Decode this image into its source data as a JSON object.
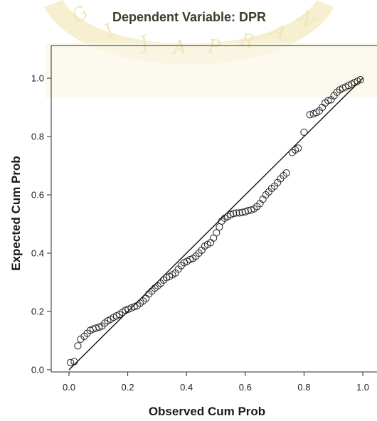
{
  "chart_data": {
    "type": "scatter",
    "title": "Dependent Variable: DPR",
    "xlabel": "Observed Cum Prob",
    "ylabel": "Expected Cum Prob",
    "xlim": [
      0.0,
      1.0
    ],
    "ylim": [
      0.0,
      1.0
    ],
    "x_ticks": [
      "0.0",
      "0.2",
      "0.4",
      "0.6",
      "0.8",
      "1.0"
    ],
    "y_ticks": [
      "0.0",
      "0.2",
      "0.4",
      "0.6",
      "0.8",
      "1.0"
    ],
    "grid": false,
    "reference_line": {
      "from": [
        0.0,
        0.0
      ],
      "to": [
        1.0,
        1.0
      ]
    },
    "points": [
      [
        0.005,
        0.025
      ],
      [
        0.018,
        0.028
      ],
      [
        0.03,
        0.082
      ],
      [
        0.04,
        0.105
      ],
      [
        0.052,
        0.115
      ],
      [
        0.062,
        0.125
      ],
      [
        0.072,
        0.135
      ],
      [
        0.082,
        0.14
      ],
      [
        0.092,
        0.143
      ],
      [
        0.102,
        0.146
      ],
      [
        0.112,
        0.15
      ],
      [
        0.122,
        0.16
      ],
      [
        0.132,
        0.168
      ],
      [
        0.142,
        0.173
      ],
      [
        0.152,
        0.18
      ],
      [
        0.162,
        0.185
      ],
      [
        0.172,
        0.19
      ],
      [
        0.182,
        0.197
      ],
      [
        0.192,
        0.204
      ],
      [
        0.202,
        0.208
      ],
      [
        0.212,
        0.212
      ],
      [
        0.222,
        0.216
      ],
      [
        0.232,
        0.22
      ],
      [
        0.242,
        0.228
      ],
      [
        0.252,
        0.236
      ],
      [
        0.262,
        0.245
      ],
      [
        0.272,
        0.26
      ],
      [
        0.282,
        0.27
      ],
      [
        0.292,
        0.28
      ],
      [
        0.302,
        0.288
      ],
      [
        0.312,
        0.297
      ],
      [
        0.322,
        0.308
      ],
      [
        0.332,
        0.316
      ],
      [
        0.342,
        0.32
      ],
      [
        0.352,
        0.326
      ],
      [
        0.362,
        0.332
      ],
      [
        0.372,
        0.345
      ],
      [
        0.382,
        0.357
      ],
      [
        0.392,
        0.367
      ],
      [
        0.402,
        0.372
      ],
      [
        0.412,
        0.378
      ],
      [
        0.422,
        0.382
      ],
      [
        0.432,
        0.39
      ],
      [
        0.442,
        0.4
      ],
      [
        0.452,
        0.41
      ],
      [
        0.462,
        0.424
      ],
      [
        0.472,
        0.43
      ],
      [
        0.482,
        0.436
      ],
      [
        0.492,
        0.452
      ],
      [
        0.502,
        0.47
      ],
      [
        0.512,
        0.49
      ],
      [
        0.52,
        0.51
      ],
      [
        0.53,
        0.52
      ],
      [
        0.54,
        0.526
      ],
      [
        0.55,
        0.532
      ],
      [
        0.56,
        0.536
      ],
      [
        0.57,
        0.538
      ],
      [
        0.58,
        0.538
      ],
      [
        0.59,
        0.54
      ],
      [
        0.6,
        0.542
      ],
      [
        0.61,
        0.546
      ],
      [
        0.62,
        0.548
      ],
      [
        0.63,
        0.552
      ],
      [
        0.64,
        0.56
      ],
      [
        0.65,
        0.57
      ],
      [
        0.66,
        0.585
      ],
      [
        0.67,
        0.6
      ],
      [
        0.68,
        0.61
      ],
      [
        0.69,
        0.622
      ],
      [
        0.7,
        0.63
      ],
      [
        0.71,
        0.642
      ],
      [
        0.72,
        0.655
      ],
      [
        0.73,
        0.666
      ],
      [
        0.74,
        0.675
      ],
      [
        0.76,
        0.745
      ],
      [
        0.77,
        0.754
      ],
      [
        0.78,
        0.76
      ],
      [
        0.8,
        0.815
      ],
      [
        0.82,
        0.875
      ],
      [
        0.832,
        0.878
      ],
      [
        0.842,
        0.882
      ],
      [
        0.852,
        0.888
      ],
      [
        0.862,
        0.9
      ],
      [
        0.872,
        0.915
      ],
      [
        0.882,
        0.923
      ],
      [
        0.892,
        0.926
      ],
      [
        0.902,
        0.94
      ],
      [
        0.912,
        0.952
      ],
      [
        0.922,
        0.96
      ],
      [
        0.932,
        0.966
      ],
      [
        0.942,
        0.97
      ],
      [
        0.952,
        0.975
      ],
      [
        0.962,
        0.98
      ],
      [
        0.972,
        0.985
      ],
      [
        0.982,
        0.99
      ],
      [
        0.992,
        0.995
      ]
    ]
  },
  "watermark": {
    "letters": [
      "G",
      "I",
      "J",
      "A",
      "P",
      "R",
      "A",
      "N"
    ],
    "color": "#f1e6b9"
  },
  "colors": {
    "title": "#3d3d2a",
    "axis": "#2b2b2b",
    "marker_stroke": "#222222",
    "reference_line": "#111111"
  }
}
